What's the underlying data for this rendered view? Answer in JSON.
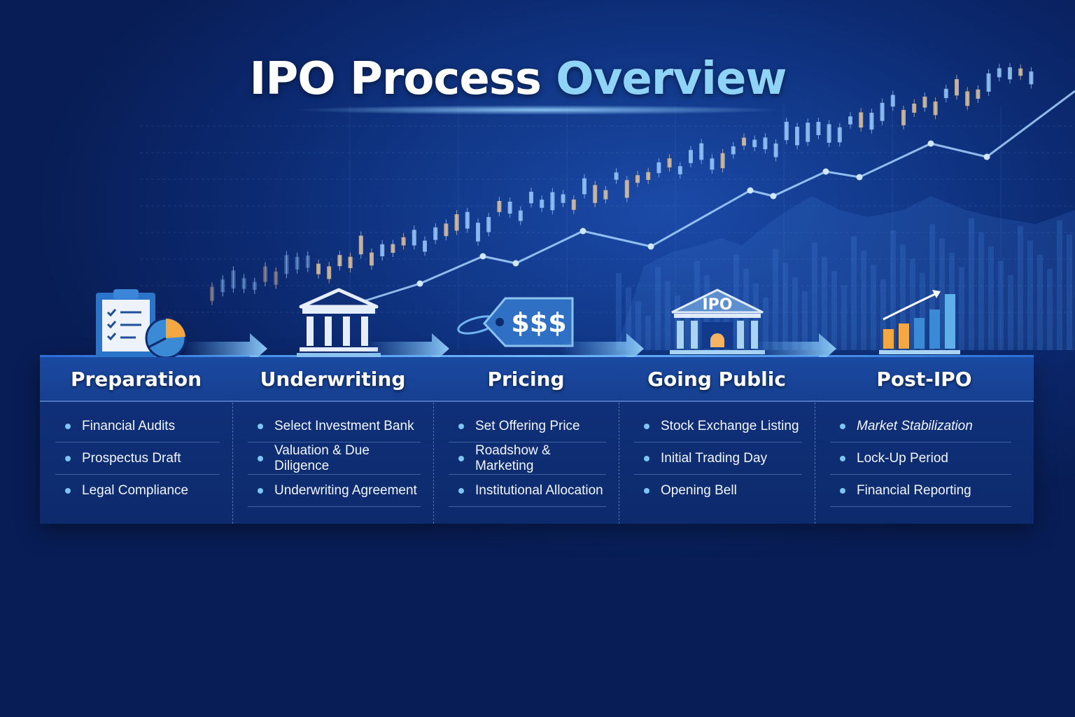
{
  "title": {
    "main": "IPO Process",
    "accent": "Overview"
  },
  "colors": {
    "background": "#0c2a72",
    "accent": "#8fd3f7",
    "bullet": "#7cc4f2",
    "orange": "#f5a742"
  },
  "stages": [
    {
      "name": "Preparation",
      "icon": "clipboard-pie-chart-icon",
      "items": [
        "Financial Audits",
        "Prospectus Draft",
        "Legal Compliance"
      ]
    },
    {
      "name": "Underwriting",
      "icon": "bank-building-icon",
      "items": [
        "Select Investment Bank",
        "Valuation & Due Diligence",
        "Underwriting Agreement"
      ]
    },
    {
      "name": "Pricing",
      "icon": "price-tag-icon",
      "tag_text": "$$$",
      "items": [
        "Set Offering Price",
        "Roadshow & Marketing",
        "Institutional Allocation"
      ]
    },
    {
      "name": "Going Public",
      "icon": "ipo-exchange-building-icon",
      "building_text": "IPO",
      "items": [
        "Stock Exchange Listing",
        "Initial Trading Day",
        "Opening Bell"
      ]
    },
    {
      "name": "Post-IPO",
      "icon": "growth-bar-chart-icon",
      "items": [
        "Market Stabilization",
        "Lock-Up Period",
        "Financial Reporting"
      ]
    }
  ]
}
